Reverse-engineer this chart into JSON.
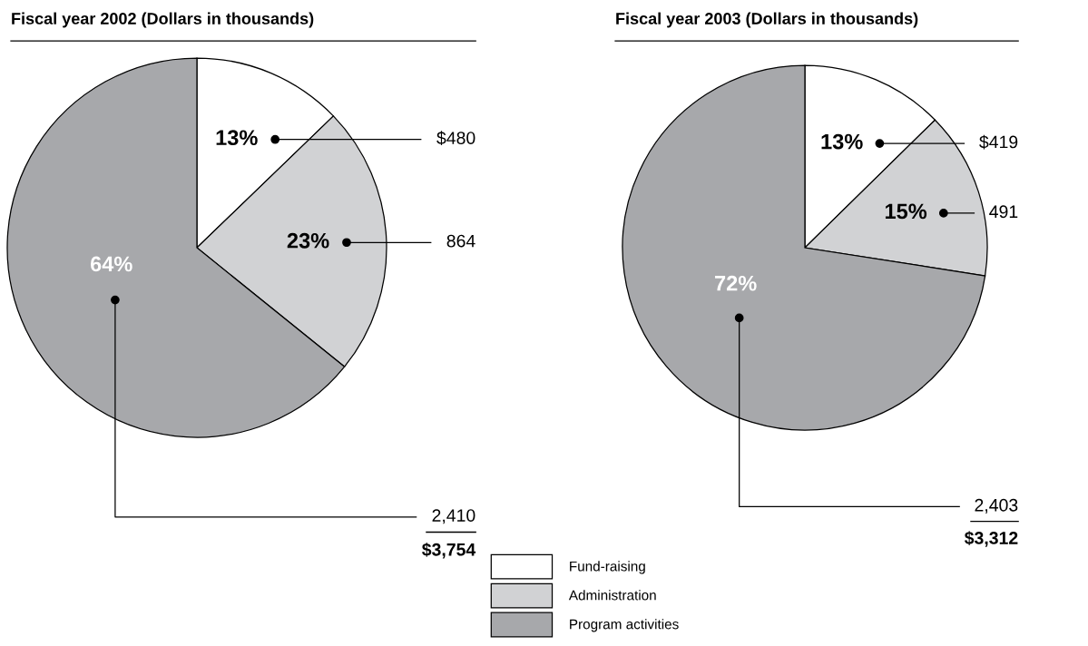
{
  "chart_data": [
    {
      "type": "pie",
      "title": "Fiscal year 2002 (Dollars in thousands)",
      "categories": [
        "Fund-raising",
        "Administration",
        "Program activities"
      ],
      "values": [
        480,
        864,
        2410
      ],
      "colors": [
        "#ffffff",
        "#d1d2d4",
        "#a7a8ab"
      ],
      "value_labels": [
        "$480",
        "864",
        "2,410"
      ],
      "annotations": [
        {
          "text": "13%",
          "x": "Fund-raising"
        },
        {
          "text": "23%",
          "x": "Administration"
        },
        {
          "text": "64%",
          "x": "Program activities"
        },
        "$3,754"
      ],
      "legend": "bottom"
    },
    {
      "type": "pie",
      "title": "Fiscal year 2003 (Dollars in thousands)",
      "categories": [
        null,
        null,
        null
      ],
      "values": [
        419,
        491,
        2403
      ],
      "colors": [
        "#ffffff",
        "#d1d2d4",
        "#a7a8ab"
      ],
      "value_labels": [
        "$419",
        "491",
        "2,403"
      ],
      "annotations": [
        {
          "text": "13%"
        },
        {
          "text": "15%"
        },
        {
          "text": "72%"
        },
        "$3,312"
      ]
    }
  ]
}
